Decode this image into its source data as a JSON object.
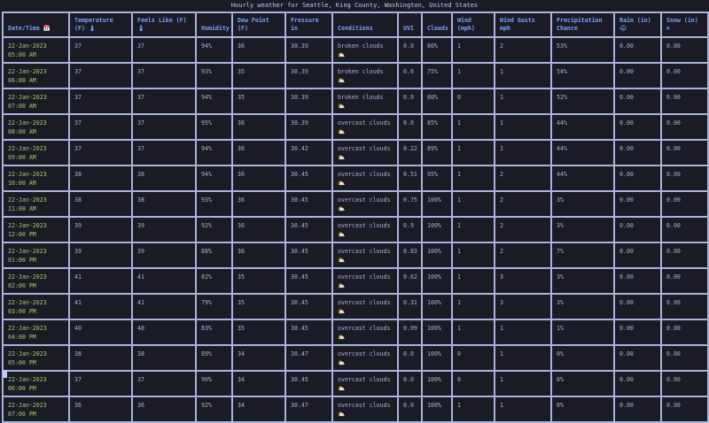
{
  "title": "Hourly weather for Seattle, King County, Washington, United States",
  "columns": [
    "Date/Time 📅",
    "Temperature (F) 🌡",
    "Feels Like (F) 🌡",
    "Humidity",
    "Dew Point (F)",
    "Pressure in",
    "Conditions",
    "UVI",
    "Clouds",
    "Wind (mph)",
    "Wind Gusts mph",
    "Precipitation Chance",
    "Rain (in) 🌧",
    "Snow (in) ❄"
  ],
  "rows": [
    [
      "22-Jan-2023 05:00 AM",
      "37",
      "37",
      "94%",
      "36",
      "30.39",
      "broken clouds ⛅",
      "0.0",
      "80%",
      "1",
      "2",
      "53%",
      "0.00",
      "0.00"
    ],
    [
      "22-Jan-2023 06:00 AM",
      "37",
      "37",
      "93%",
      "35",
      "30.39",
      "broken clouds ⛅",
      "0.0",
      "75%",
      "1",
      "1",
      "54%",
      "0.00",
      "0.00"
    ],
    [
      "22-Jan-2023 07:00 AM",
      "37",
      "37",
      "94%",
      "35",
      "30.39",
      "broken clouds ⛅",
      "0.0",
      "80%",
      "0",
      "1",
      "52%",
      "0.00",
      "0.00"
    ],
    [
      "22-Jan-2023 08:00 AM",
      "37",
      "37",
      "95%",
      "36",
      "30.39",
      "overcast clouds ⛅",
      "0.0",
      "85%",
      "1",
      "1",
      "44%",
      "0.00",
      "0.00"
    ],
    [
      "22-Jan-2023 09:00 AM",
      "37",
      "37",
      "94%",
      "36",
      "30.42",
      "overcast clouds ⛅",
      "0.22",
      "89%",
      "1",
      "1",
      "44%",
      "0.00",
      "0.00"
    ],
    [
      "22-Jan-2023 10:00 AM",
      "38",
      "38",
      "94%",
      "36",
      "30.45",
      "overcast clouds ⛅",
      "0.51",
      "95%",
      "1",
      "2",
      "44%",
      "0.00",
      "0.00"
    ],
    [
      "22-Jan-2023 11:00 AM",
      "38",
      "38",
      "93%",
      "36",
      "30.45",
      "overcast clouds ⛅",
      "0.75",
      "100%",
      "1",
      "2",
      "3%",
      "0.00",
      "0.00"
    ],
    [
      "22-Jan-2023 12:00 PM",
      "39",
      "39",
      "92%",
      "36",
      "30.45",
      "overcast clouds ⛅",
      "0.9",
      "100%",
      "1",
      "2",
      "3%",
      "0.00",
      "0.00"
    ],
    [
      "22-Jan-2023 01:00 PM",
      "39",
      "39",
      "88%",
      "36",
      "30.45",
      "overcast clouds ⛅",
      "0.83",
      "100%",
      "1",
      "2",
      "7%",
      "0.00",
      "0.00"
    ],
    [
      "22-Jan-2023 02:00 PM",
      "41",
      "41",
      "82%",
      "35",
      "30.45",
      "overcast clouds ⛅",
      "0.62",
      "100%",
      "1",
      "3",
      "3%",
      "0.00",
      "0.00"
    ],
    [
      "22-Jan-2023 03:00 PM",
      "41",
      "41",
      "79%",
      "35",
      "30.45",
      "overcast clouds ⛅",
      "0.31",
      "100%",
      "1",
      "3",
      "3%",
      "0.00",
      "0.00"
    ],
    [
      "22-Jan-2023 04:00 PM",
      "40",
      "40",
      "83%",
      "35",
      "30.45",
      "overcast clouds ⛅",
      "0.09",
      "100%",
      "1",
      "1",
      "1%",
      "0.00",
      "0.00"
    ],
    [
      "22-Jan-2023 05:00 PM",
      "38",
      "38",
      "89%",
      "34",
      "30.47",
      "overcast clouds ⛅",
      "0.0",
      "100%",
      "0",
      "1",
      "0%",
      "0.00",
      "0.00"
    ],
    [
      "22-Jan-2023 06:00 PM",
      "37",
      "37",
      "90%",
      "34",
      "30.45",
      "overcast clouds ⛅",
      "0.0",
      "100%",
      "0",
      "1",
      "0%",
      "0.00",
      "0.00"
    ],
    [
      "22-Jan-2023 07:00 PM",
      "36",
      "36",
      "92%",
      "34",
      "30.47",
      "overcast clouds ⛅",
      "0.0",
      "100%",
      "1",
      "1",
      "0%",
      "0.00",
      "0.00"
    ]
  ]
}
